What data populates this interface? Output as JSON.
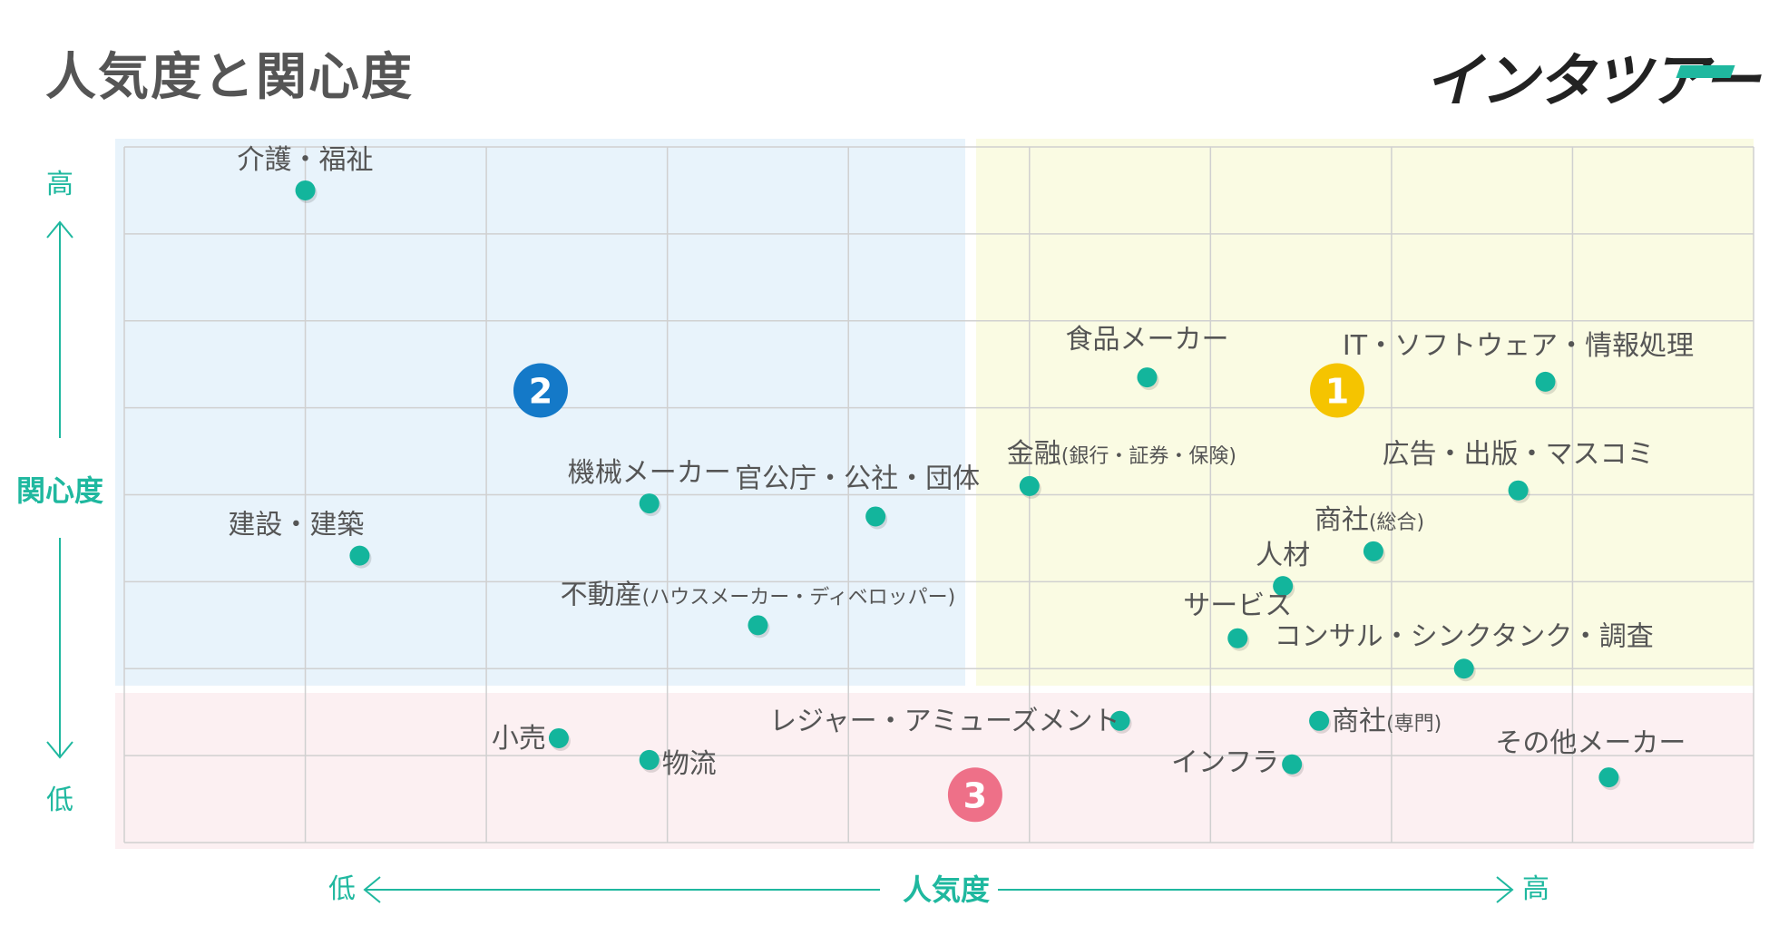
{
  "header": {
    "title": "人気度と関心度",
    "logo_text": "インタツアー",
    "logo_accent_color": "#1fb89f"
  },
  "chart_data": {
    "type": "scatter",
    "title": "人気度と関心度",
    "xlabel": "人気度",
    "ylabel": "関心度",
    "x_low_label": "低",
    "x_high_label": "高",
    "y_low_label": "低",
    "y_high_label": "高",
    "xlim": [
      0,
      9
    ],
    "ylim": [
      0,
      8
    ],
    "grid": true,
    "point_color": "#13b59c",
    "quadrants": [
      {
        "number": "1",
        "badge_color": "#f5c400",
        "fill": "#fafbe3",
        "badge_x": 6.7,
        "badge_y": 5.2
      },
      {
        "number": "2",
        "badge_color": "#1479c8",
        "fill": "#e8f3fb",
        "badge_x": 2.3,
        "badge_y": 5.2
      },
      {
        "number": "3",
        "badge_color": "#ee7088",
        "fill": "#fcf0f2",
        "badge_x": 4.7,
        "badge_y": 0.55
      }
    ],
    "points": [
      {
        "label": "介護・福祉",
        "sub": "",
        "x": 1.0,
        "y": 7.5
      },
      {
        "label": "建設・建築",
        "sub": "",
        "x": 1.3,
        "y": 3.3
      },
      {
        "label": "機械メーカー",
        "sub": "",
        "x": 2.9,
        "y": 3.9
      },
      {
        "label": "官公庁・公社・団体",
        "sub": "",
        "x": 4.15,
        "y": 3.75
      },
      {
        "label": "不動産",
        "sub": "(ハウスメーカー・ディベロッパー)",
        "x": 3.5,
        "y": 2.5
      },
      {
        "label": "食品メーカー",
        "sub": "",
        "x": 5.65,
        "y": 5.35
      },
      {
        "label": "IT・ソフトウェア・情報処理",
        "sub": "",
        "x": 7.85,
        "y": 5.3
      },
      {
        "label": "金融",
        "sub": "(銀行・証券・保険)",
        "x": 5.0,
        "y": 4.1
      },
      {
        "label": "広告・出版・マスコミ",
        "sub": "",
        "x": 7.7,
        "y": 4.05
      },
      {
        "label": "商社",
        "sub": "(総合)",
        "x": 6.9,
        "y": 3.35
      },
      {
        "label": "人材",
        "sub": "",
        "x": 6.4,
        "y": 2.95
      },
      {
        "label": "サービス",
        "sub": "",
        "x": 6.15,
        "y": 2.35
      },
      {
        "label": "コンサル・シンクタンク・調査",
        "sub": "",
        "x": 7.4,
        "y": 2.0
      },
      {
        "label": "小売",
        "sub": "",
        "x": 2.4,
        "y": 1.2
      },
      {
        "label": "物流",
        "sub": "",
        "x": 2.9,
        "y": 0.95
      },
      {
        "label": "レジャー・アミューズメント",
        "sub": "",
        "x": 5.5,
        "y": 1.4
      },
      {
        "label": "商社",
        "sub": "(専門)",
        "x": 6.6,
        "y": 1.4
      },
      {
        "label": "インフラ",
        "sub": "",
        "x": 6.45,
        "y": 0.9
      },
      {
        "label": "その他メーカー",
        "sub": "",
        "x": 8.2,
        "y": 0.75
      }
    ]
  }
}
